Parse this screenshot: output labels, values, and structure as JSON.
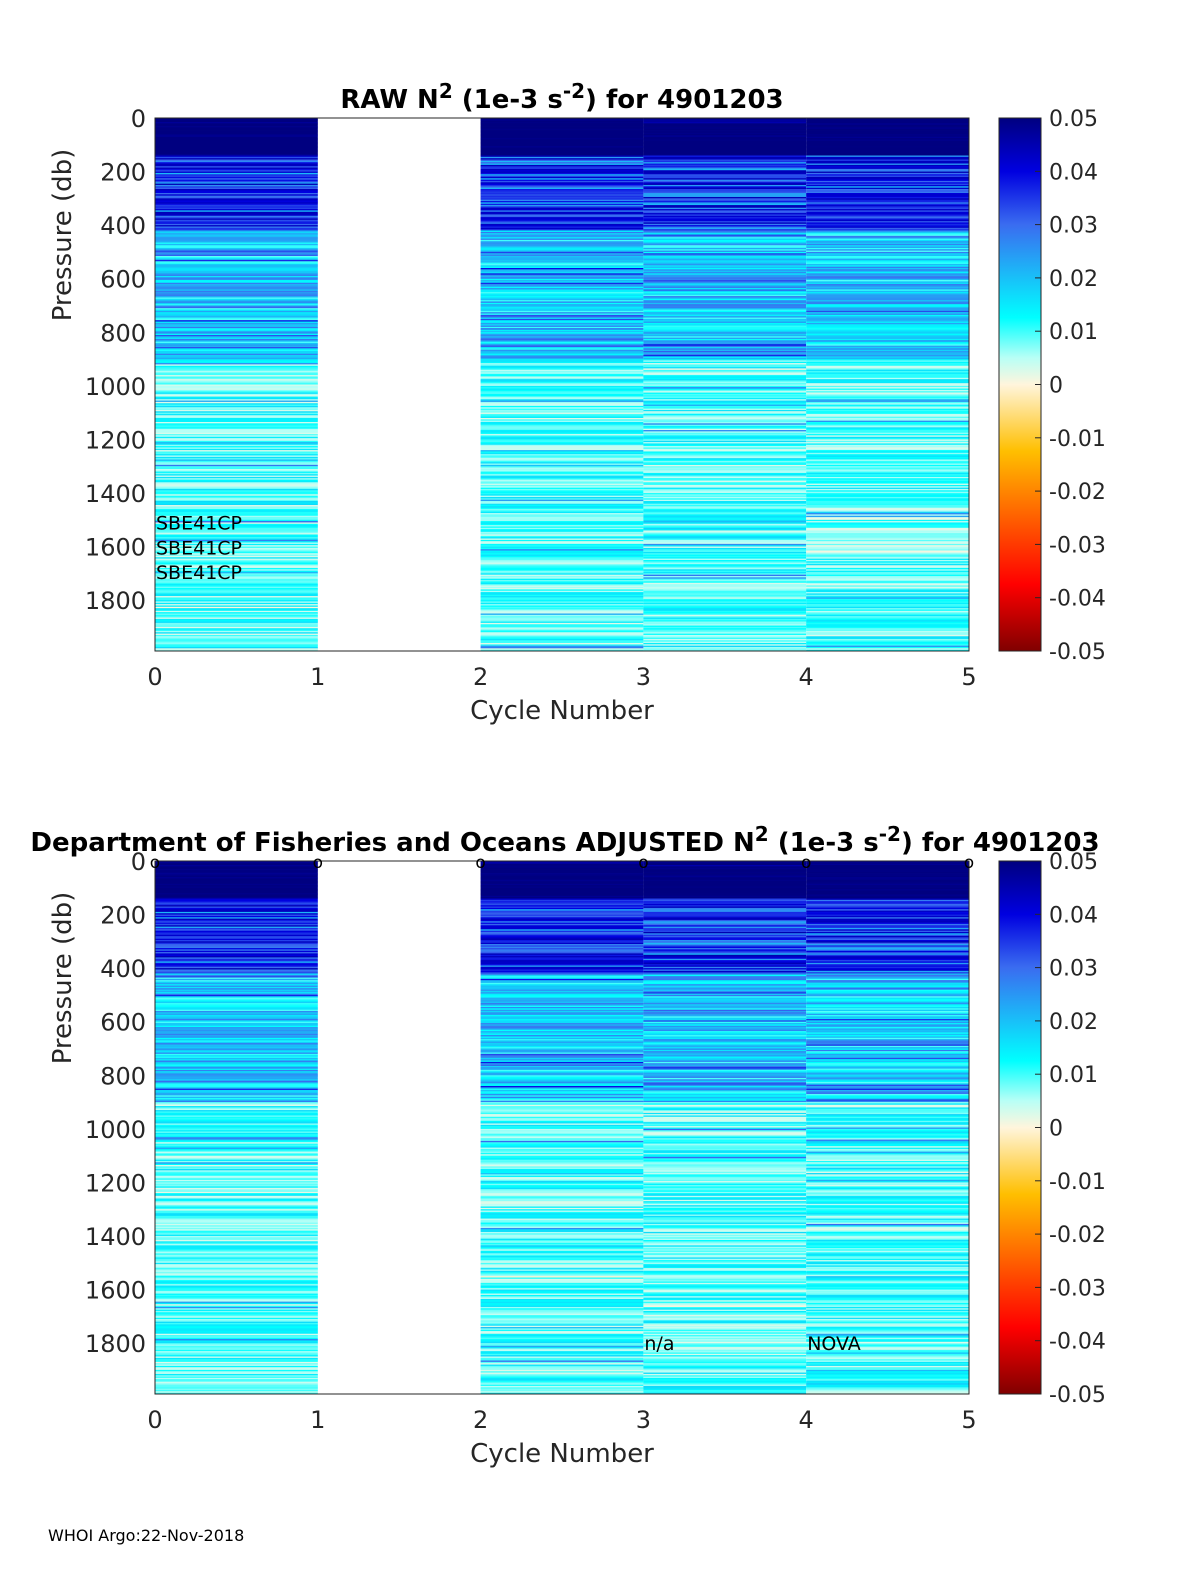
{
  "footer": "WHOI Argo:22-Nov-2018",
  "colors": {
    "colormap": "jet",
    "axis": "#262626",
    "background": "#ffffff"
  },
  "chart_data": [
    {
      "type": "heatmap",
      "title_prefix": "RAW N",
      "title_sup1": "2",
      "title_middle": " (1e-3 s",
      "title_sup2": "-2",
      "title_suffix": ") for 4901203",
      "xlabel": "Cycle Number",
      "ylabel": "Pressure (db)",
      "xlim": [
        0,
        5
      ],
      "ylim": [
        0,
        1990
      ],
      "y_reversed": true,
      "xticks": [
        "0",
        "1",
        "2",
        "3",
        "4",
        "5"
      ],
      "yticks": [
        "0",
        "200",
        "400",
        "600",
        "800",
        "1000",
        "1200",
        "1400",
        "1600",
        "1800"
      ],
      "clim": [
        -0.05,
        0.05
      ],
      "colorbar_ticks": [
        "0.05",
        "0.04",
        "0.03",
        "0.02",
        "0.01",
        "0",
        "-0.01",
        "-0.02",
        "-0.03",
        "-0.04",
        "-0.05"
      ],
      "cycles_with_data": [
        0,
        2,
        3,
        4
      ],
      "cycles_missing": [
        1
      ],
      "annotations": [
        {
          "text": "SBE41CP",
          "x": 0,
          "y": 1510
        },
        {
          "text": "SBE41CP",
          "x": 0,
          "y": 1603
        },
        {
          "text": "SBE41CP",
          "x": 0,
          "y": 1695
        }
      ],
      "markers": []
    },
    {
      "type": "heatmap",
      "title_prefix": "Department of Fisheries and Oceans  ADJUSTED N",
      "title_sup1": "2",
      "title_middle": " (1e-3 s",
      "title_sup2": "-2",
      "title_suffix": ") for 4901203",
      "xlabel": "Cycle Number",
      "ylabel": "Pressure (db)",
      "xlim": [
        0,
        5
      ],
      "ylim": [
        0,
        1990
      ],
      "y_reversed": true,
      "xticks": [
        "0",
        "1",
        "2",
        "3",
        "4",
        "5"
      ],
      "yticks": [
        "0",
        "200",
        "400",
        "600",
        "800",
        "1000",
        "1200",
        "1400",
        "1600",
        "1800"
      ],
      "clim": [
        -0.05,
        0.05
      ],
      "colorbar_ticks": [
        "0.05",
        "0.04",
        "0.03",
        "0.02",
        "0.01",
        "0",
        "-0.01",
        "-0.02",
        "-0.03",
        "-0.04",
        "-0.05"
      ],
      "cycles_with_data": [
        0,
        2,
        3,
        4
      ],
      "cycles_missing": [
        1
      ],
      "annotations": [
        {
          "text": "n/a",
          "x": 3,
          "y": 1800
        },
        {
          "text": "NOVA",
          "x": 4,
          "y": 1800
        }
      ],
      "markers": [
        {
          "label": "o",
          "x": 0,
          "y": 0
        },
        {
          "label": "o",
          "x": 1,
          "y": 0
        },
        {
          "label": "o",
          "x": 2,
          "y": 0
        },
        {
          "label": "o",
          "x": 3,
          "y": 0
        },
        {
          "label": "o",
          "x": 4,
          "y": 0
        },
        {
          "label": "o",
          "x": 5,
          "y": 0
        }
      ]
    }
  ]
}
